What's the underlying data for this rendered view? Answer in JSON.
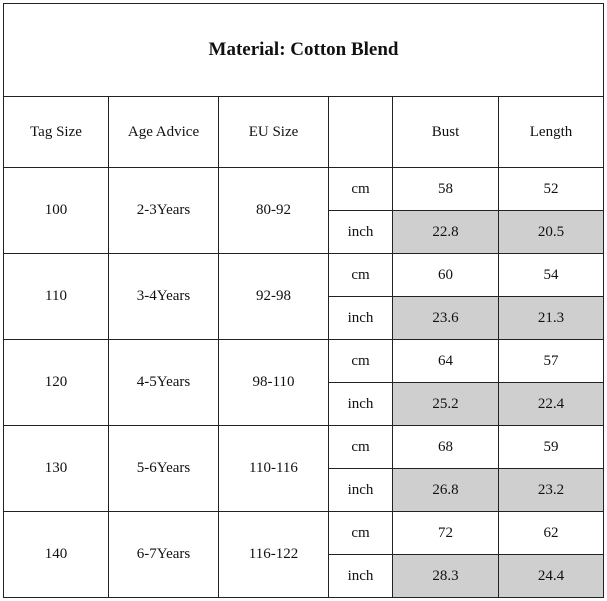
{
  "title": "Material: Cotton Blend",
  "headers": {
    "tag_size": "Tag Size",
    "age_advice": "Age Advice",
    "eu_size": "EU Size",
    "unit": "",
    "bust": "Bust",
    "length": "Length"
  },
  "rows": [
    {
      "tag": "100",
      "age": "2-3Years",
      "eu": "80-92",
      "cm": {
        "unit": "cm",
        "bust": "58",
        "length": "52"
      },
      "inch": {
        "unit": "inch",
        "bust": "22.8",
        "length": "20.5"
      }
    },
    {
      "tag": "110",
      "age": "3-4Years",
      "eu": "92-98",
      "cm": {
        "unit": "cm",
        "bust": "60",
        "length": "54"
      },
      "inch": {
        "unit": "inch",
        "bust": "23.6",
        "length": "21.3"
      }
    },
    {
      "tag": "120",
      "age": "4-5Years",
      "eu": "98-110",
      "cm": {
        "unit": "cm",
        "bust": "64",
        "length": "57"
      },
      "inch": {
        "unit": "inch",
        "bust": "25.2",
        "length": "22.4"
      }
    },
    {
      "tag": "130",
      "age": "5-6Years",
      "eu": "110-116",
      "cm": {
        "unit": "cm",
        "bust": "68",
        "length": "59"
      },
      "inch": {
        "unit": "inch",
        "bust": "26.8",
        "length": "23.2"
      }
    },
    {
      "tag": "140",
      "age": "6-7Years",
      "eu": "116-122",
      "cm": {
        "unit": "cm",
        "bust": "72",
        "length": "62"
      },
      "inch": {
        "unit": "inch",
        "bust": "28.3",
        "length": "24.4"
      }
    }
  ],
  "colors": {
    "shaded_cell": "#cfcfcf",
    "border": "#222222"
  }
}
